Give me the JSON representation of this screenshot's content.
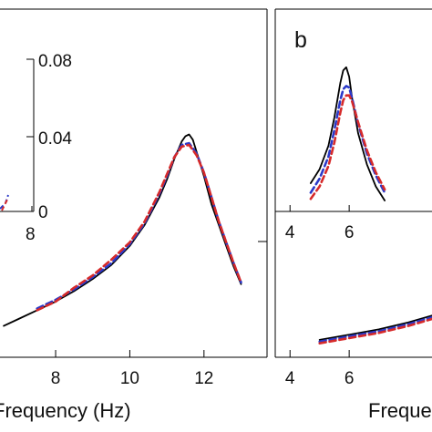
{
  "colors": {
    "black": "#000000",
    "blue": "#2a39c9",
    "red": "#d62a2a"
  },
  "chart_data": [
    {
      "type": "line",
      "panel": "a-main",
      "xlabel": "Frequency (Hz)",
      "xticks": [
        "8",
        "10",
        "12"
      ],
      "xlim": [
        6.5,
        13.7
      ],
      "ylim": [
        0,
        1
      ],
      "series": [
        {
          "style": "solid",
          "color": "black",
          "x": [
            6.6,
            7.0,
            7.5,
            8.0,
            8.5,
            9.0,
            9.5,
            10.0,
            10.4,
            10.8,
            11.0,
            11.2,
            11.4,
            11.5,
            11.6,
            11.7,
            11.8,
            12.0,
            12.2,
            12.4,
            12.6,
            12.8,
            13.0
          ],
          "y": [
            0.09,
            0.11,
            0.135,
            0.16,
            0.19,
            0.225,
            0.265,
            0.32,
            0.38,
            0.46,
            0.51,
            0.57,
            0.62,
            0.635,
            0.64,
            0.625,
            0.59,
            0.52,
            0.44,
            0.38,
            0.32,
            0.26,
            0.21
          ]
        },
        {
          "style": "dashed",
          "color": "blue",
          "x": [
            7.5,
            8.0,
            8.5,
            9.0,
            9.5,
            10.0,
            10.4,
            10.8,
            11.0,
            11.2,
            11.4,
            11.6,
            11.8,
            12.0,
            12.2,
            12.4,
            12.6,
            12.8,
            13.0
          ],
          "y": [
            0.14,
            0.165,
            0.195,
            0.23,
            0.27,
            0.325,
            0.385,
            0.47,
            0.52,
            0.575,
            0.61,
            0.615,
            0.585,
            0.53,
            0.46,
            0.39,
            0.33,
            0.27,
            0.215
          ]
        },
        {
          "style": "dashed",
          "color": "red",
          "x": [
            7.5,
            8.0,
            8.5,
            9.0,
            9.5,
            10.0,
            10.4,
            10.8,
            11.0,
            11.2,
            11.4,
            11.6,
            11.8,
            12.0,
            12.2,
            12.4,
            12.6,
            12.8,
            13.0
          ],
          "y": [
            0.135,
            0.16,
            0.2,
            0.235,
            0.28,
            0.33,
            0.39,
            0.475,
            0.525,
            0.575,
            0.605,
            0.61,
            0.58,
            0.53,
            0.46,
            0.39,
            0.33,
            0.27,
            0.215
          ]
        }
      ]
    },
    {
      "type": "line",
      "panel": "a-inset",
      "xticks": [
        "8"
      ],
      "yticks": [
        "0.08",
        "0.04",
        "0"
      ],
      "ylim": [
        0,
        0.08
      ],
      "series": []
    },
    {
      "type": "line",
      "panel": "b-main",
      "panel_label": "b",
      "xlabel": "Freque",
      "xticks": [
        "4",
        "6"
      ],
      "xlim": [
        3.5,
        8.8
      ],
      "series": [
        {
          "style": "solid",
          "color": "black",
          "x": [
            5.0,
            6.0,
            7.0,
            8.0,
            8.8
          ],
          "y": [
            0.05,
            0.065,
            0.08,
            0.1,
            0.12
          ]
        },
        {
          "style": "dashed",
          "color": "blue",
          "x": [
            5.0,
            6.0,
            7.0,
            8.0,
            8.8
          ],
          "y": [
            0.045,
            0.06,
            0.075,
            0.095,
            0.115
          ]
        },
        {
          "style": "dashed",
          "color": "red",
          "x": [
            5.0,
            6.0,
            7.0,
            8.0,
            8.8
          ],
          "y": [
            0.04,
            0.055,
            0.07,
            0.09,
            0.11
          ]
        }
      ]
    },
    {
      "type": "line",
      "panel": "b-inset",
      "xticks": [
        "4",
        "6"
      ],
      "xlim": [
        3.5,
        8.8
      ],
      "ylim": [
        0,
        1
      ],
      "series": [
        {
          "style": "solid",
          "color": "black",
          "x": [
            4.7,
            5.0,
            5.3,
            5.5,
            5.7,
            5.8,
            5.9,
            6.0,
            6.1,
            6.3,
            6.6,
            6.9,
            7.2
          ],
          "y": [
            0.18,
            0.27,
            0.42,
            0.6,
            0.82,
            0.9,
            0.92,
            0.86,
            0.72,
            0.5,
            0.3,
            0.16,
            0.07
          ]
        },
        {
          "style": "dashed",
          "color": "blue",
          "x": [
            4.7,
            5.0,
            5.3,
            5.5,
            5.7,
            5.8,
            5.9,
            6.0,
            6.1,
            6.3,
            6.6,
            6.9,
            7.2
          ],
          "y": [
            0.12,
            0.21,
            0.35,
            0.52,
            0.71,
            0.78,
            0.8,
            0.79,
            0.72,
            0.56,
            0.37,
            0.23,
            0.12
          ]
        },
        {
          "style": "dashed",
          "color": "red",
          "x": [
            4.7,
            5.0,
            5.3,
            5.5,
            5.7,
            5.8,
            5.9,
            6.0,
            6.1,
            6.3,
            6.6,
            6.9,
            7.2
          ],
          "y": [
            0.08,
            0.16,
            0.29,
            0.44,
            0.63,
            0.71,
            0.74,
            0.74,
            0.7,
            0.57,
            0.39,
            0.25,
            0.14
          ]
        }
      ]
    }
  ]
}
